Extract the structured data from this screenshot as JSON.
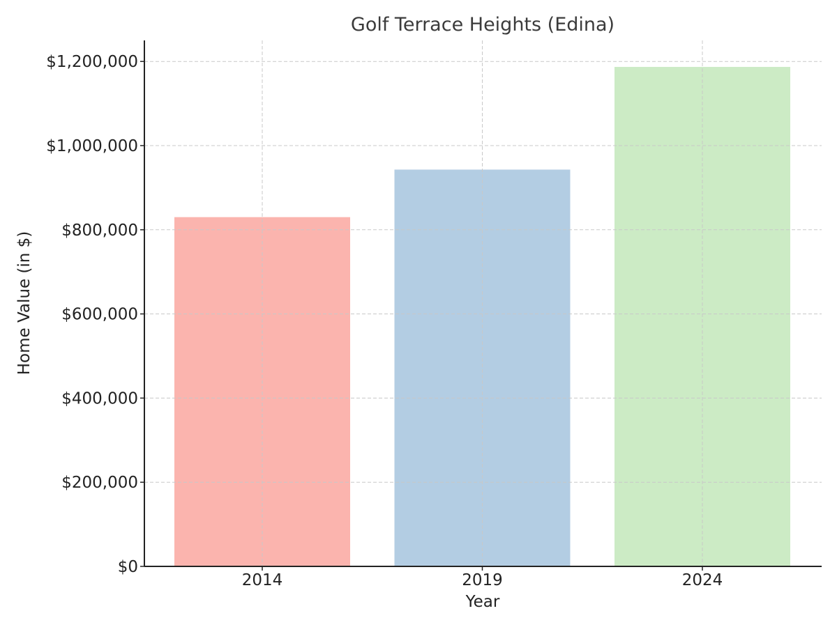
{
  "chart_data": {
    "type": "bar",
    "title": "Golf Terrace Heights (Edina)",
    "xlabel": "Year",
    "ylabel": "Home Value (in $)",
    "categories": [
      "2014",
      "2019",
      "2024"
    ],
    "values": [
      830000,
      943000,
      1187000
    ],
    "colors": [
      "#fbb4ae",
      "#b3cde3",
      "#ccebc5"
    ],
    "ylim": [
      0,
      1250000
    ],
    "yticks": [
      0,
      200000,
      400000,
      600000,
      800000,
      1000000,
      1200000
    ],
    "ytick_labels": [
      "$0",
      "$200,000",
      "$400,000",
      "$600,000",
      "$800,000",
      "$1,000,000",
      "$1,200,000"
    ],
    "grid": true
  }
}
